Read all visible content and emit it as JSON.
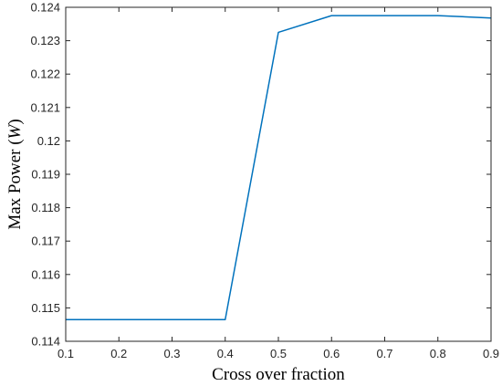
{
  "chart_data": {
    "type": "line",
    "title": "",
    "xlabel": "Cross over fraction",
    "ylabel_prefix": "Max Power (",
    "ylabel_unit": "W",
    "ylabel_suffix": ")",
    "xlim": [
      0.1,
      0.9
    ],
    "ylim": [
      0.114,
      0.124
    ],
    "xticks": [
      0.1,
      0.2,
      0.3,
      0.4,
      0.5,
      0.6,
      0.7,
      0.8,
      0.9
    ],
    "yticks": [
      0.114,
      0.115,
      0.116,
      0.117,
      0.118,
      0.119,
      0.12,
      0.121,
      0.122,
      0.123,
      0.124
    ],
    "grid": false,
    "line_color": "#0072BD",
    "series": [
      {
        "x": [
          0.1,
          0.2,
          0.3,
          0.4,
          0.5,
          0.6,
          0.7,
          0.8,
          0.9
        ],
        "y": [
          0.11465,
          0.11465,
          0.11465,
          0.11465,
          0.12325,
          0.12375,
          0.12375,
          0.12375,
          0.12368
        ]
      }
    ]
  }
}
